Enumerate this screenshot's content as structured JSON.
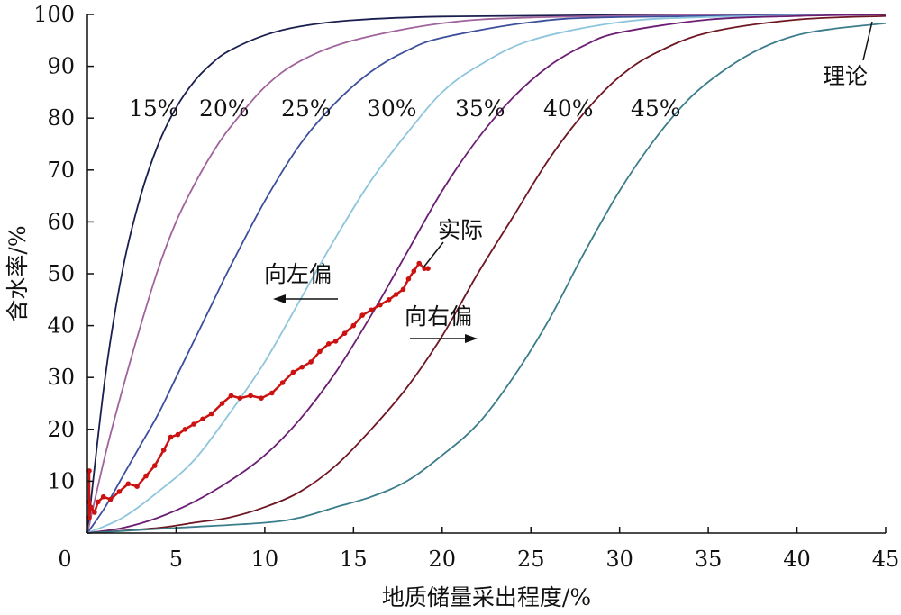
{
  "chart_data": {
    "type": "line",
    "xlabel": "地质储量采出程度/%",
    "ylabel": "含水率/%",
    "xlim": [
      0,
      45
    ],
    "ylim": [
      0,
      100
    ],
    "x_ticks": [
      0,
      5,
      10,
      15,
      20,
      25,
      30,
      35,
      40,
      45
    ],
    "y_ticks": [
      10,
      20,
      30,
      40,
      50,
      60,
      70,
      80,
      90,
      100
    ],
    "grid": false,
    "theory_label": "理论",
    "series": [
      {
        "name": "15%",
        "color": "#1b1f4f",
        "points": [
          [
            0,
            0
          ],
          [
            1,
            30
          ],
          [
            2,
            51
          ],
          [
            3,
            65
          ],
          [
            4,
            75
          ],
          [
            5,
            82
          ],
          [
            6,
            87
          ],
          [
            7,
            90.5
          ],
          [
            8,
            93
          ],
          [
            10,
            96
          ],
          [
            12,
            97.7
          ],
          [
            15,
            98.9
          ],
          [
            20,
            99.6
          ],
          [
            30,
            99.9
          ],
          [
            45,
            100
          ]
        ]
      },
      {
        "name": "20%",
        "color": "#a0639b",
        "points": [
          [
            0,
            0
          ],
          [
            1,
            15
          ],
          [
            2,
            28
          ],
          [
            3,
            40
          ],
          [
            4,
            51
          ],
          [
            5,
            60
          ],
          [
            6,
            67
          ],
          [
            7,
            73
          ],
          [
            8,
            78
          ],
          [
            10,
            86
          ],
          [
            12,
            91
          ],
          [
            15,
            95
          ],
          [
            20,
            98.3
          ],
          [
            25,
            99.4
          ],
          [
            35,
            99.9
          ],
          [
            45,
            100
          ]
        ]
      },
      {
        "name": "25%",
        "color": "#3d4f9c",
        "points": [
          [
            0,
            0
          ],
          [
            1,
            5
          ],
          [
            2,
            11
          ],
          [
            3,
            17
          ],
          [
            4,
            23
          ],
          [
            5,
            30
          ],
          [
            6,
            37
          ],
          [
            7,
            44
          ],
          [
            8,
            51
          ],
          [
            10,
            64
          ],
          [
            12,
            75
          ],
          [
            14,
            83
          ],
          [
            16,
            89
          ],
          [
            18,
            93
          ],
          [
            20,
            95.5
          ],
          [
            25,
            98.5
          ],
          [
            30,
            99.5
          ],
          [
            45,
            100
          ]
        ]
      },
      {
        "name": "30%",
        "color": "#8ec5dd",
        "points": [
          [
            0,
            0
          ],
          [
            2,
            3
          ],
          [
            4,
            8
          ],
          [
            6,
            14
          ],
          [
            8,
            23
          ],
          [
            10,
            33
          ],
          [
            12,
            45
          ],
          [
            14,
            57
          ],
          [
            16,
            68
          ],
          [
            18,
            77
          ],
          [
            20,
            85
          ],
          [
            22,
            90
          ],
          [
            25,
            95
          ],
          [
            30,
            98.5
          ],
          [
            35,
            99.5
          ],
          [
            45,
            100
          ]
        ]
      },
      {
        "name": "35%",
        "color": "#6b1e73",
        "points": [
          [
            0,
            0
          ],
          [
            2,
            1
          ],
          [
            4,
            3
          ],
          [
            6,
            6
          ],
          [
            8,
            10
          ],
          [
            10,
            15
          ],
          [
            12,
            22
          ],
          [
            14,
            31
          ],
          [
            16,
            42
          ],
          [
            18,
            54
          ],
          [
            20,
            66
          ],
          [
            22,
            76
          ],
          [
            24,
            84
          ],
          [
            26,
            90
          ],
          [
            28,
            94
          ],
          [
            30,
            96.5
          ],
          [
            35,
            99
          ],
          [
            40,
            99.7
          ],
          [
            45,
            100
          ]
        ]
      },
      {
        "name": "40%",
        "color": "#6e1622",
        "points": [
          [
            0,
            0
          ],
          [
            4,
            1
          ],
          [
            6,
            2
          ],
          [
            8,
            3
          ],
          [
            10,
            5
          ],
          [
            12,
            8
          ],
          [
            14,
            13
          ],
          [
            16,
            20
          ],
          [
            18,
            28
          ],
          [
            20,
            38
          ],
          [
            22,
            50
          ],
          [
            24,
            61
          ],
          [
            26,
            72
          ],
          [
            28,
            81
          ],
          [
            30,
            88
          ],
          [
            32,
            92.5
          ],
          [
            35,
            96.5
          ],
          [
            40,
            99
          ],
          [
            45,
            99.7
          ]
        ]
      },
      {
        "name": "45%",
        "color": "#3b7d8a",
        "points": [
          [
            0,
            0
          ],
          [
            5,
            1
          ],
          [
            10,
            2
          ],
          [
            12,
            3
          ],
          [
            14,
            5
          ],
          [
            16,
            7
          ],
          [
            18,
            10
          ],
          [
            20,
            15
          ],
          [
            22,
            21
          ],
          [
            24,
            30
          ],
          [
            26,
            41
          ],
          [
            28,
            54
          ],
          [
            30,
            66
          ],
          [
            32,
            76
          ],
          [
            34,
            84
          ],
          [
            36,
            89.5
          ],
          [
            38,
            93.5
          ],
          [
            40,
            96
          ],
          [
            42,
            97.2
          ],
          [
            45,
            98.3
          ]
        ]
      }
    ],
    "actual": {
      "name": "实际",
      "color": "#cc1111",
      "points": [
        [
          0.1,
          12
        ],
        [
          0.1,
          6
        ],
        [
          0.1,
          3
        ],
        [
          0.2,
          5
        ],
        [
          0.4,
          4
        ],
        [
          0.6,
          6
        ],
        [
          0.9,
          7
        ],
        [
          1.3,
          6.5
        ],
        [
          1.8,
          8
        ],
        [
          2.3,
          9.5
        ],
        [
          2.8,
          9
        ],
        [
          3.3,
          11
        ],
        [
          3.8,
          13
        ],
        [
          4.3,
          16
        ],
        [
          4.7,
          18.5
        ],
        [
          5.1,
          19
        ],
        [
          5.5,
          20
        ],
        [
          6,
          21
        ],
        [
          6.5,
          22
        ],
        [
          7,
          23
        ],
        [
          7.6,
          25
        ],
        [
          8.1,
          26.5
        ],
        [
          8.6,
          26
        ],
        [
          9.2,
          26.5
        ],
        [
          9.8,
          26
        ],
        [
          10.4,
          27
        ],
        [
          11,
          29
        ],
        [
          11.6,
          31
        ],
        [
          12.1,
          32
        ],
        [
          12.6,
          33
        ],
        [
          13.1,
          35
        ],
        [
          13.6,
          36.5
        ],
        [
          14,
          37
        ],
        [
          14.5,
          38.5
        ],
        [
          15,
          40
        ],
        [
          15.5,
          42
        ],
        [
          16,
          43
        ],
        [
          16.5,
          44
        ],
        [
          17,
          45
        ],
        [
          17.4,
          46
        ],
        [
          17.8,
          47
        ],
        [
          18.1,
          49
        ],
        [
          18.4,
          50.5
        ],
        [
          18.7,
          52
        ],
        [
          19,
          51
        ],
        [
          19.2,
          51
        ]
      ]
    },
    "curve_labels": [
      "15%",
      "20%",
      "25%",
      "30%",
      "35%",
      "40%",
      "45%"
    ],
    "annotations": {
      "left_shift": "向左偏",
      "right_shift": "向右偏",
      "actual": "实际",
      "theory": "理论"
    }
  }
}
